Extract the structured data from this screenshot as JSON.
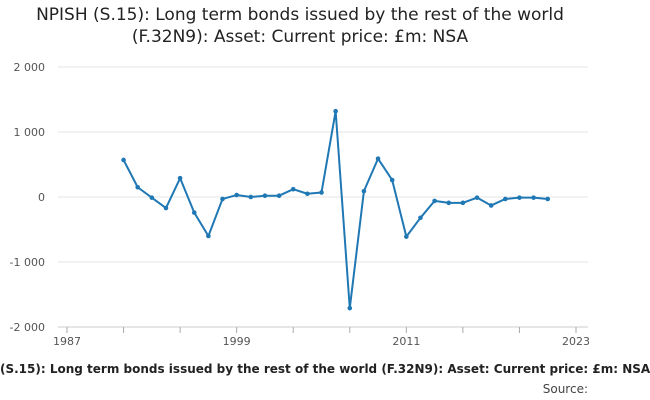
{
  "chart_data": {
    "type": "line",
    "title": "NPISH (S.15): Long term bonds issued by the rest of the world (F.32N9): Asset: Current price: £m: NSA",
    "xlabel": "",
    "ylabel": "",
    "x_tick_labels": [
      "1987",
      "1999",
      "2011",
      "2023"
    ],
    "x_ticks": [
      1987,
      1999,
      2011,
      2023
    ],
    "y_tick_labels": [
      "2 000",
      "1 000",
      "0",
      "-1 000",
      "-2 000"
    ],
    "y_ticks": [
      2000,
      1000,
      0,
      -1000,
      -2000
    ],
    "xlim": [
      1987,
      2023
    ],
    "ylim": [
      -2000,
      2000
    ],
    "grid": "horizontal",
    "color": "#1f78b4",
    "series": [
      {
        "x": [
          1991,
          1992,
          1993,
          1994,
          1995,
          1996,
          1997,
          1998,
          1999,
          2000,
          2001,
          2002,
          2003,
          2004,
          2005,
          2006,
          2007,
          2008,
          2009,
          2010,
          2011,
          2012,
          2013,
          2014,
          2015,
          2016,
          2017,
          2018,
          2019,
          2020,
          2021
        ],
        "values": [
          570,
          150,
          -10,
          -170,
          290,
          -240,
          -600,
          -30,
          30,
          0,
          20,
          20,
          120,
          50,
          70,
          1320,
          -1710,
          90,
          590,
          260,
          -610,
          -320,
          -60,
          -90,
          -90,
          -10,
          -130,
          -30,
          -10,
          -10,
          -30
        ]
      }
    ]
  },
  "footer": {
    "series_label": "(S.15): Long term bonds issued by the rest of the world (F.32N9): Asset: Current price: £m: NSA",
    "source_label": "Source:"
  }
}
